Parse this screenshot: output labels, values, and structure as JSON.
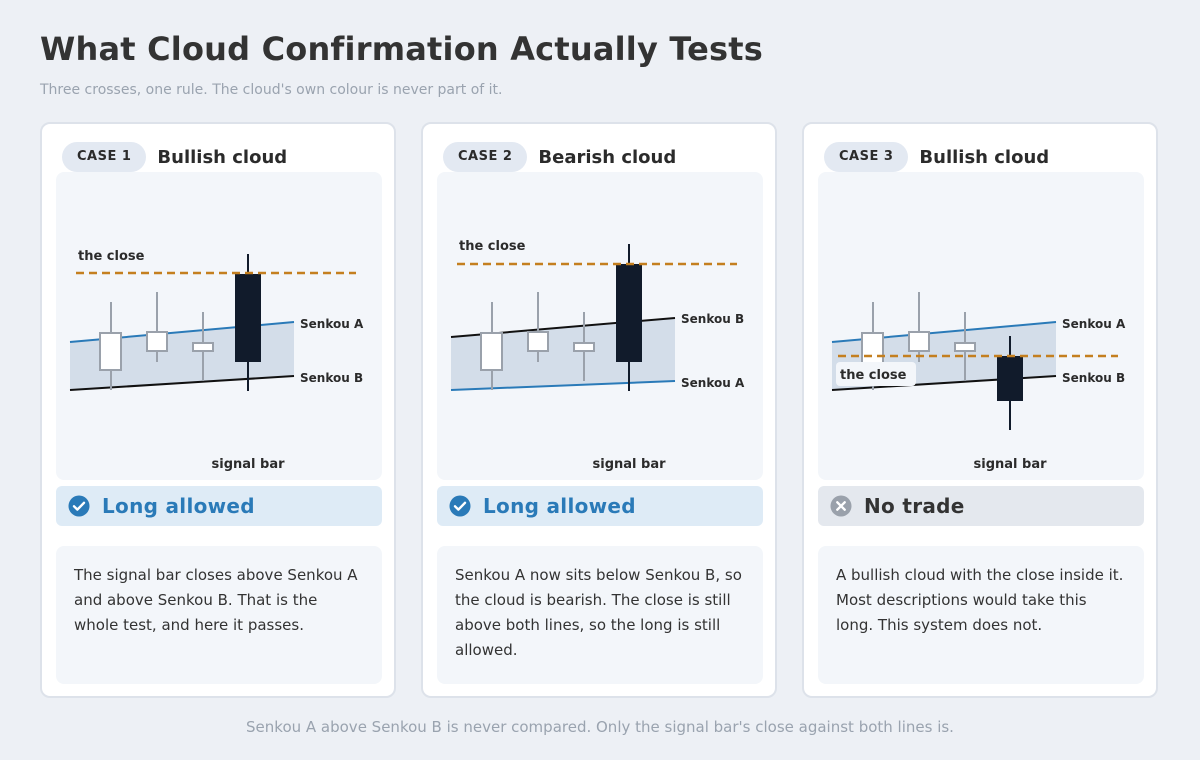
{
  "header": {
    "title": "What Cloud Confirmation Actually Tests",
    "subtitle": "Three crosses, one rule. The cloud's own colour is never part of it."
  },
  "colors": {
    "page_bg": "#edf0f5",
    "card_bg": "#ffffff",
    "chart_bg": "#f3f6fa",
    "cloud_fill": "#d3dde9",
    "senkou_blue": "#2a7ab8",
    "senkou_black": "#111111",
    "close_line": "#c47f1f",
    "signal_bar": "#111b2b",
    "allowed_bg": "#deebf6",
    "allowed_text": "#2a7ab8",
    "denied_bg": "#e4e8ee",
    "denied_icon": "#9aa1ab"
  },
  "cases": [
    {
      "case_label": "CASE 1",
      "title": "Bullish cloud",
      "labels": {
        "close": "the close",
        "upper": "Senkou A",
        "lower": "Senkou B",
        "signal": "signal bar"
      },
      "verdict": {
        "label": "Long allowed",
        "status": "allowed",
        "icon": "check-circle-icon"
      },
      "description": "The signal bar closes above Senkou A and above Senkou B. That is the whole test, and here it passes."
    },
    {
      "case_label": "CASE 2",
      "title": "Bearish cloud",
      "labels": {
        "close": "the close",
        "upper": "Senkou B",
        "lower": "Senkou A",
        "signal": "signal bar"
      },
      "verdict": {
        "label": "Long allowed",
        "status": "allowed",
        "icon": "check-circle-icon"
      },
      "description": "Senkou A now sits below Senkou B, so the cloud is bearish. The close is still above both lines, so the long is still allowed."
    },
    {
      "case_label": "CASE 3",
      "title": "Bullish cloud",
      "labels": {
        "close": "the close",
        "upper": "Senkou A",
        "lower": "Senkou B",
        "signal": "signal bar"
      },
      "verdict": {
        "label": "No trade",
        "status": "denied",
        "icon": "x-circle-icon"
      },
      "description": "A bullish cloud with the close inside it. Most descriptions would take this long. This system does not."
    }
  ],
  "footer": "Senkou A above Senkou B is never compared. Only the signal bar's close against both lines is."
}
